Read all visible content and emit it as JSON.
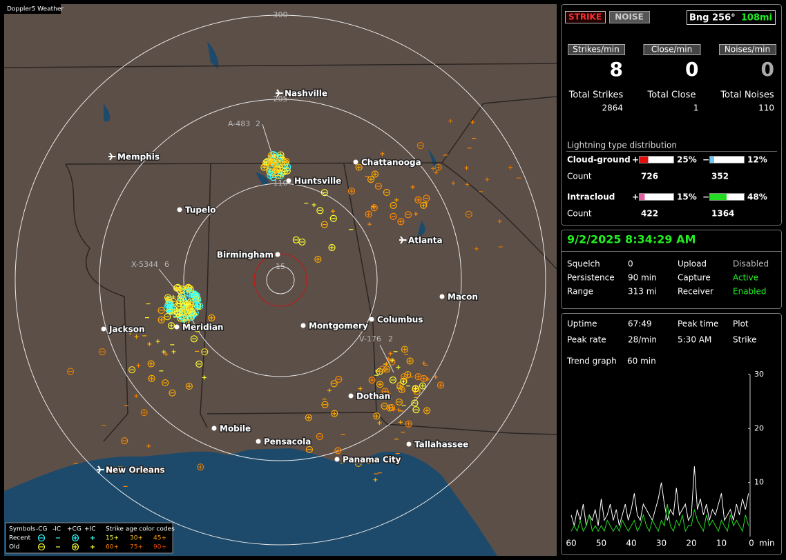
{
  "map": {
    "title": "Doppler5 Weather",
    "cities": [
      "Nashville",
      "Memphis",
      "Chattanooga",
      "Huntsville",
      "Tupelo",
      "Birmingham",
      "Atlanta",
      "Macon",
      "Jackson",
      "Meridian",
      "Montgomery",
      "Columbus",
      "Dothan",
      "Mobile",
      "Pensacola",
      "Tallahassee",
      "Panama City",
      "New Orleans"
    ],
    "range_labels": [
      "300",
      "205",
      "110",
      "15"
    ],
    "markers": [
      {
        "id": "A-483",
        "count": "2"
      },
      {
        "id": "X-5344",
        "count": "6"
      },
      {
        "id": "V-176",
        "count": "2"
      }
    ],
    "legend": {
      "symbols_label": "Symbols",
      "columns": [
        "-CG",
        "-IC",
        "+CG",
        "+IC"
      ],
      "age_label": "Strike age color codes",
      "rows": [
        {
          "name": "Recent",
          "ages": [
            "15+",
            "30+",
            "45+"
          ]
        },
        {
          "name": "Old",
          "ages": [
            "60+",
            "75+",
            "90+"
          ]
        }
      ]
    }
  },
  "counters": {
    "strike_button": "STRIKE",
    "noise_button": "NOISE",
    "bearing": "Bng 256°",
    "distance": "108mi",
    "rates": [
      {
        "label": "Strikes/min",
        "value": "8",
        "total_label": "Total Strikes",
        "total": "2864"
      },
      {
        "label": "Close/min",
        "value": "0",
        "total_label": "Total Close",
        "total": "1"
      },
      {
        "label": "Noises/min",
        "value": "0",
        "total_label": "Total Noises",
        "total": "110"
      }
    ]
  },
  "distribution": {
    "title": "Lightning type distribution",
    "count_label": "Count",
    "types": [
      {
        "name": "Cloud-ground",
        "positive": {
          "sign": "+",
          "percent": 25,
          "label": "25%",
          "count": "726",
          "color": "#e01010"
        },
        "negative": {
          "sign": "−",
          "percent": 12,
          "label": "12%",
          "count": "352",
          "color": "#70c8f0"
        }
      },
      {
        "name": "Intracloud",
        "positive": {
          "sign": "+",
          "percent": 15,
          "label": "15%",
          "count": "422",
          "color": "#e060a0"
        },
        "negative": {
          "sign": "−",
          "percent": 48,
          "label": "48%",
          "count": "1364",
          "color": "#22dd22"
        }
      }
    ]
  },
  "status": {
    "datetime": "9/2/2025 8:34:29 AM",
    "rows": [
      [
        "Squelch",
        "0",
        "Upload",
        "Disabled"
      ],
      [
        "Persistence",
        "90 min",
        "Capture",
        "Active"
      ],
      [
        "Range",
        "313 mi",
        "Receiver",
        "Enabled"
      ]
    ]
  },
  "stats": {
    "rows": [
      [
        "Uptime",
        "67:49",
        "Peak time",
        "Plot"
      ],
      [
        "Peak rate",
        "28/min",
        "5:30 AM",
        "Strike"
      ]
    ],
    "trend_label": "Trend graph",
    "trend_value": "60 min"
  },
  "chart_data": {
    "type": "line",
    "x": [
      60,
      59,
      58,
      57,
      56,
      55,
      54,
      53,
      52,
      51,
      50,
      49,
      48,
      47,
      46,
      45,
      44,
      43,
      42,
      41,
      40,
      39,
      38,
      37,
      36,
      35,
      34,
      33,
      32,
      31,
      30,
      29,
      28,
      27,
      26,
      25,
      24,
      23,
      22,
      21,
      20,
      19,
      18,
      17,
      16,
      15,
      14,
      13,
      12,
      11,
      10,
      9,
      8,
      7,
      6,
      5,
      4,
      3,
      2,
      1
    ],
    "xlim": [
      60,
      0
    ],
    "xticks": [
      60,
      50,
      40,
      30,
      20,
      10,
      0
    ],
    "x_unit": "min",
    "ylim": [
      0,
      30
    ],
    "yticks": [
      10,
      20,
      30
    ],
    "series": [
      {
        "color": "#ffffff",
        "values": [
          4,
          2,
          5,
          3,
          6,
          2,
          4,
          3,
          5,
          2,
          7,
          3,
          4,
          6,
          3,
          5,
          2,
          4,
          6,
          3,
          5,
          8,
          4,
          3,
          6,
          5,
          4,
          3,
          5,
          7,
          10,
          6,
          3,
          5,
          4,
          9,
          4,
          5,
          6,
          3,
          4,
          13,
          5,
          7,
          4,
          6,
          3,
          5,
          4,
          6,
          8,
          3,
          4,
          5,
          3,
          6,
          4,
          7,
          5,
          8
        ]
      },
      {
        "color": "#22dd22",
        "values": [
          1,
          2,
          1,
          3,
          1,
          2,
          4,
          1,
          2,
          1,
          2,
          1,
          3,
          2,
          1,
          2,
          1,
          3,
          2,
          1,
          2,
          3,
          1,
          2,
          4,
          2,
          1,
          3,
          2,
          1,
          3,
          2,
          6,
          2,
          1,
          3,
          2,
          4,
          1,
          2,
          2,
          5,
          3,
          2,
          1,
          4,
          2,
          3,
          2,
          1,
          3,
          2,
          1,
          4,
          2,
          3,
          2,
          1,
          4,
          2
        ]
      }
    ]
  }
}
